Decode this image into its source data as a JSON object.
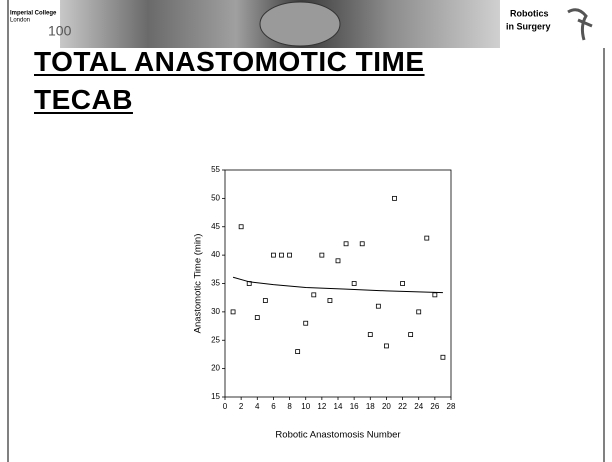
{
  "header": {
    "logo_line1": "Imperial College",
    "logo_line2": "London",
    "logo_number": "100",
    "badge_line1": "Robotics",
    "badge_line2": "in Surgery"
  },
  "slide_title": [
    "TOTAL ANASTOMOTIC TIME",
    "TECAB"
  ],
  "chart_data": {
    "type": "scatter",
    "xlabel": "Robotic Anastomosis Number",
    "ylabel": "Anastomotic Time (min)",
    "series": [
      {
        "marker": "square",
        "color": "#000000",
        "x": [
          1,
          2,
          3,
          4,
          5,
          6,
          7,
          8,
          9,
          10,
          11,
          12,
          13,
          14,
          15,
          16,
          17,
          18,
          19,
          20,
          21,
          22,
          23,
          24,
          25,
          26,
          27
        ],
        "values": [
          30,
          45,
          35,
          29,
          32,
          40,
          40,
          40,
          23,
          28,
          33,
          40,
          32,
          39,
          42,
          35,
          42,
          26,
          31,
          24,
          50,
          35,
          26,
          30,
          43,
          33,
          22
        ]
      }
    ],
    "trend": {
      "color": "#000000",
      "x": [
        1,
        3,
        6,
        10,
        15,
        20,
        27
      ],
      "values": [
        36.1,
        35.3,
        34.8,
        34.3,
        34.0,
        33.7,
        33.4
      ]
    },
    "xlim": [
      0,
      28
    ],
    "xticks": [
      0,
      2,
      4,
      6,
      8,
      10,
      12,
      14,
      16,
      18,
      20,
      22,
      24,
      26,
      28
    ],
    "ylim": [
      15,
      55
    ],
    "yticks": [
      15,
      20,
      25,
      30,
      35,
      40,
      45,
      50,
      55
    ]
  }
}
